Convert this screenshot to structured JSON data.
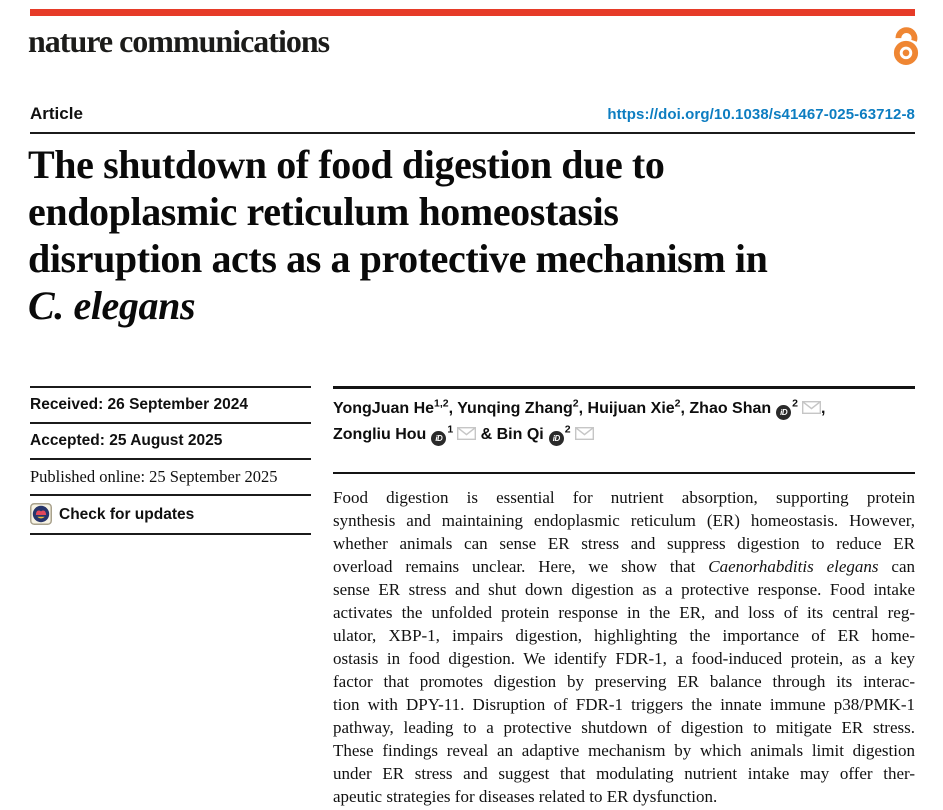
{
  "colors": {
    "red": "#e63b28",
    "oa": "#ef8633",
    "blue": "#0d7dc1",
    "ink": "#0d0d0d",
    "rule": "#1b1b1b",
    "mail": "#c6c6c6",
    "cmnavy": "#27356b",
    "cmred": "#e2485c",
    "cmyellow": "#f3c13d"
  },
  "brand": {
    "wordmark": "nature communications",
    "open_access_icon": "open-access-lock-icon"
  },
  "header": {
    "article_label": "Article",
    "doi": "https://doi.org/10.1038/s41467-025-63712-8"
  },
  "title": {
    "lines": [
      [
        {
          "t": "The shutdown of food digestion due to"
        }
      ],
      [
        {
          "t": "endoplasmic reticulum homeostasis"
        }
      ],
      [
        {
          "t": "disruption acts as a protective mechanism in"
        }
      ],
      [
        {
          "t": "C. elegans",
          "i": true
        }
      ]
    ]
  },
  "meta": {
    "rows": [
      {
        "name": "received-date",
        "label": "Received: 26 September 2024",
        "font": "sans"
      },
      {
        "name": "accepted-date",
        "label": "Accepted: 25 August 2025",
        "font": "sans"
      },
      {
        "name": "published-date",
        "label": "Published online: 25 September 2025",
        "font": "serif"
      },
      {
        "name": "check-for-updates",
        "label": "Check for updates",
        "font": "sans",
        "icon": "crossmark-icon",
        "interactable": true
      }
    ]
  },
  "authors": {
    "lines": [
      [
        {
          "t": "YongJuan He"
        },
        {
          "sup": "1,2"
        },
        {
          "t": ", Yunqing Zhang"
        },
        {
          "sup": "2"
        },
        {
          "t": ", Huijuan Xie"
        },
        {
          "sup": "2"
        },
        {
          "t": ", Zhao Shan"
        },
        {
          "icon": "orcid-icon"
        },
        {
          "sup": "2"
        },
        {
          "icon": "mail-icon"
        },
        {
          "t": ","
        }
      ],
      [
        {
          "t": "Zongliu Hou"
        },
        {
          "icon": "orcid-icon"
        },
        {
          "sup": "1"
        },
        {
          "icon": "mail-icon"
        },
        {
          "t": " & Bin Qi"
        },
        {
          "icon": "orcid-icon"
        },
        {
          "sup": "2"
        },
        {
          "icon": "mail-icon"
        }
      ]
    ]
  },
  "icons": {
    "orcid_glyph": "iD"
  },
  "abstract": {
    "lines": [
      [
        {
          "t": "Food digestion is essential for nutrient absorption, supporting protein"
        }
      ],
      [
        {
          "t": "synthesis and maintaining endoplasmic reticulum (ER) homeostasis. However,"
        }
      ],
      [
        {
          "t": "whether animals can sense ER stress and suppress digestion to reduce ER"
        }
      ],
      [
        {
          "t": "overload remains unclear. Here, we show that "
        },
        {
          "t": "Caenorhabditis elegans",
          "i": true
        },
        {
          "t": " can"
        }
      ],
      [
        {
          "t": "sense ER stress and shut down digestion as a protective response. Food intake"
        }
      ],
      [
        {
          "t": "activates the unfolded protein response in the ER, and loss of its central reg-"
        }
      ],
      [
        {
          "t": "ulator, XBP-1, impairs digestion, highlighting the importance of ER home-"
        }
      ],
      [
        {
          "t": "ostasis in food digestion. We identify FDR-1, a food-induced protein, as a key"
        }
      ],
      [
        {
          "t": "factor that promotes digestion by preserving ER balance through its interac-"
        }
      ],
      [
        {
          "t": "tion with DPY-11. Disruption of FDR-1 triggers the innate immune p38/PMK-1"
        }
      ],
      [
        {
          "t": "pathway, leading to a protective shutdown of digestion to mitigate ER stress."
        }
      ],
      [
        {
          "t": "These findings reveal an adaptive mechanism by which animals limit digestion"
        }
      ],
      [
        {
          "t": "under ER stress and suggest that modulating nutrient intake may offer ther-"
        }
      ],
      [
        {
          "t": "apeutic strategies for diseases related to ER dysfunction."
        }
      ]
    ]
  }
}
